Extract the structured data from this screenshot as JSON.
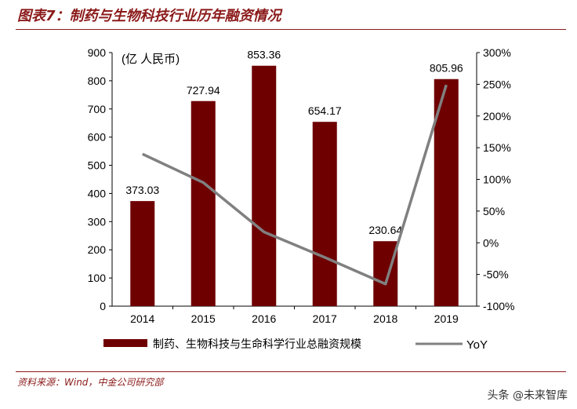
{
  "figure_title": "图表7：制药与生物科技行业历年融资情况",
  "source": "资料来源：Wind，中金公司研究部",
  "watermark": "头条 @未来智库",
  "colors": {
    "bar": "#6e0000",
    "line": "#808080",
    "accent": "#8b1a1a"
  },
  "chart_data": {
    "type": "bar",
    "categories": [
      "2014",
      "2015",
      "2016",
      "2017",
      "2018",
      "2019"
    ],
    "unit_label": "(亿 人民币)",
    "ylim": [
      0,
      900
    ],
    "yticks": [
      "0",
      "100",
      "200",
      "300",
      "400",
      "500",
      "600",
      "700",
      "800",
      "900"
    ],
    "y2lim": [
      -100,
      300
    ],
    "y2ticks": [
      "-100%",
      "-50%",
      "0%",
      "50%",
      "100%",
      "150%",
      "200%",
      "250%",
      "300%"
    ],
    "series": [
      {
        "name": "制药、生物科技与生命科学行业总融资规模",
        "type": "bar",
        "axis": "left",
        "values": [
          373.03,
          727.94,
          853.36,
          654.17,
          230.64,
          805.96
        ],
        "labels": [
          "373.03",
          "727.94",
          "853.36",
          "654.17",
          "230.64",
          "805.96"
        ]
      },
      {
        "name": "YoY",
        "type": "line",
        "axis": "right",
        "values": [
          140,
          95,
          17,
          -23,
          -65,
          249
        ]
      }
    ],
    "legend": "bottom"
  }
}
